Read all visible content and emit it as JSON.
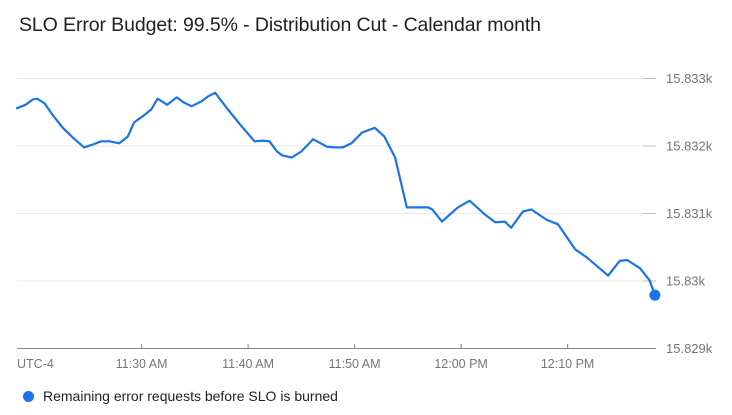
{
  "title": "SLO Error Budget: 99.5% - Distribution Cut - Calendar month",
  "legend": {
    "label": "Remaining error requests before SLO is burned",
    "color": "#1a73e8"
  },
  "colors": {
    "line": "#1a73e8",
    "grid": "#e9e9e9",
    "grid_stub": "#bdbdbd",
    "axis": "#85898d",
    "tick_label": "#757575",
    "title_text": "#202124"
  },
  "chart_data": {
    "type": "line",
    "title": "SLO Error Budget: 99.5% - Distribution Cut - Calendar month",
    "grid": "horizontal-only",
    "legend_position": "bottom-left",
    "t_units": "minutes_after_11:00_AM",
    "x_axis": {
      "corner_label": "UTC-4",
      "lim": [
        18.3,
        78.3
      ],
      "ticks": [
        {
          "t": 30,
          "label": "11:30 AM"
        },
        {
          "t": 40,
          "label": "11:40 AM"
        },
        {
          "t": 50,
          "label": "11:50 AM"
        },
        {
          "t": 60,
          "label": "12:00 PM"
        },
        {
          "t": 70,
          "label": "12:10 PM"
        }
      ]
    },
    "y_axis": {
      "lim": [
        15829,
        15833
      ],
      "ticks": [
        {
          "v": 15833,
          "label": "15.833k"
        },
        {
          "v": 15832,
          "label": "15.832k"
        },
        {
          "v": 15831,
          "label": "15.831k"
        },
        {
          "v": 15830,
          "label": "15.83k"
        },
        {
          "v": 15829,
          "label": "15.829k"
        }
      ]
    },
    "series": [
      {
        "name": "Remaining error requests before SLO is burned",
        "color": "#1a73e8",
        "end_dot": true,
        "points": [
          {
            "t": 18.3,
            "v": 15832.56
          },
          {
            "t": 19.1,
            "v": 15832.61
          },
          {
            "t": 19.8,
            "v": 15832.69
          },
          {
            "t": 20.2,
            "v": 15832.7
          },
          {
            "t": 20.9,
            "v": 15832.63
          },
          {
            "t": 21.6,
            "v": 15832.47
          },
          {
            "t": 22.6,
            "v": 15832.27
          },
          {
            "t": 23.5,
            "v": 15832.13
          },
          {
            "t": 24.6,
            "v": 15831.98
          },
          {
            "t": 25.4,
            "v": 15832.02
          },
          {
            "t": 26.2,
            "v": 15832.07
          },
          {
            "t": 27.0,
            "v": 15832.07
          },
          {
            "t": 27.9,
            "v": 15832.04
          },
          {
            "t": 28.7,
            "v": 15832.14
          },
          {
            "t": 29.3,
            "v": 15832.35
          },
          {
            "t": 30.1,
            "v": 15832.44
          },
          {
            "t": 30.9,
            "v": 15832.54
          },
          {
            "t": 31.5,
            "v": 15832.7
          },
          {
            "t": 32.4,
            "v": 15832.61
          },
          {
            "t": 33.3,
            "v": 15832.72
          },
          {
            "t": 34.0,
            "v": 15832.64
          },
          {
            "t": 34.7,
            "v": 15832.59
          },
          {
            "t": 35.6,
            "v": 15832.66
          },
          {
            "t": 36.2,
            "v": 15832.73
          },
          {
            "t": 36.9,
            "v": 15832.79
          },
          {
            "t": 38.1,
            "v": 15832.54
          },
          {
            "t": 39.4,
            "v": 15832.29
          },
          {
            "t": 40.6,
            "v": 15832.07
          },
          {
            "t": 41.4,
            "v": 15832.08
          },
          {
            "t": 42.0,
            "v": 15832.07
          },
          {
            "t": 42.7,
            "v": 15831.92
          },
          {
            "t": 43.2,
            "v": 15831.86
          },
          {
            "t": 44.1,
            "v": 15831.83
          },
          {
            "t": 45.0,
            "v": 15831.92
          },
          {
            "t": 46.1,
            "v": 15832.1
          },
          {
            "t": 47.4,
            "v": 15831.99
          },
          {
            "t": 48.1,
            "v": 15831.98
          },
          {
            "t": 48.9,
            "v": 15831.98
          },
          {
            "t": 49.7,
            "v": 15832.04
          },
          {
            "t": 50.7,
            "v": 15832.2
          },
          {
            "t": 51.9,
            "v": 15832.27
          },
          {
            "t": 52.8,
            "v": 15832.14
          },
          {
            "t": 53.8,
            "v": 15831.83
          },
          {
            "t": 54.9,
            "v": 15831.09
          },
          {
            "t": 55.8,
            "v": 15831.09
          },
          {
            "t": 56.9,
            "v": 15831.09
          },
          {
            "t": 57.3,
            "v": 15831.06
          },
          {
            "t": 58.2,
            "v": 15830.88
          },
          {
            "t": 59.7,
            "v": 15831.09
          },
          {
            "t": 60.8,
            "v": 15831.19
          },
          {
            "t": 62.2,
            "v": 15830.99
          },
          {
            "t": 63.2,
            "v": 15830.87
          },
          {
            "t": 64.1,
            "v": 15830.88
          },
          {
            "t": 64.7,
            "v": 15830.79
          },
          {
            "t": 65.8,
            "v": 15831.03
          },
          {
            "t": 66.6,
            "v": 15831.06
          },
          {
            "t": 68.0,
            "v": 15830.91
          },
          {
            "t": 69.1,
            "v": 15830.84
          },
          {
            "t": 70.7,
            "v": 15830.47
          },
          {
            "t": 71.8,
            "v": 15830.35
          },
          {
            "t": 73.8,
            "v": 15830.08
          },
          {
            "t": 74.9,
            "v": 15830.3
          },
          {
            "t": 75.6,
            "v": 15830.31
          },
          {
            "t": 76.8,
            "v": 15830.19
          },
          {
            "t": 77.7,
            "v": 15830.01
          },
          {
            "t": 78.2,
            "v": 15829.79
          }
        ]
      }
    ]
  }
}
